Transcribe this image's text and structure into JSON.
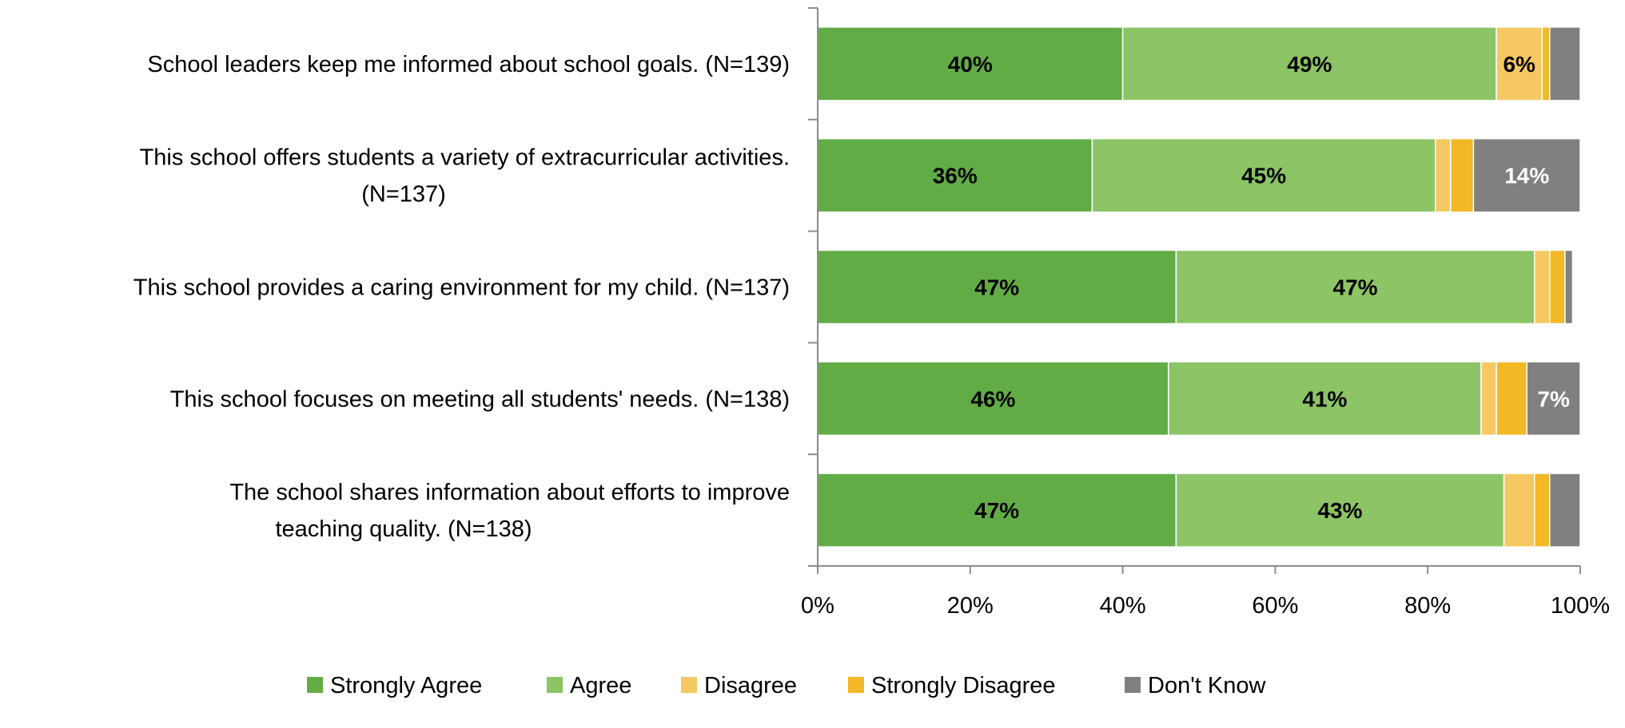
{
  "chart_data": {
    "type": "bar",
    "orientation": "horizontal",
    "stacked": true,
    "categories": [
      [
        "School leaders keep me informed about school goals. (N=139)"
      ],
      [
        "This school offers students a variety of extracurricular activities.",
        "(N=137)"
      ],
      [
        "This school provides a caring environment for my child. (N=137)"
      ],
      [
        "This school focuses on meeting all students' needs. (N=138)"
      ],
      [
        "The school shares information about efforts to improve",
        "teaching quality. (N=138)"
      ]
    ],
    "series": [
      {
        "name": "Strongly Agree",
        "color": "#62ac46",
        "values": [
          40,
          36,
          47,
          46,
          47
        ],
        "labels": [
          "40%",
          "36%",
          "47%",
          "46%",
          "47%"
        ],
        "label_color": "#000000"
      },
      {
        "name": "Agree",
        "color": "#8cc466",
        "values": [
          49,
          45,
          47,
          41,
          43
        ],
        "labels": [
          "49%",
          "45%",
          "47%",
          "41%",
          "43%"
        ],
        "label_color": "#000000"
      },
      {
        "name": "Disagree",
        "color": "#f6c863",
        "values": [
          6,
          2,
          2,
          2,
          4
        ],
        "labels": [
          "6%",
          "",
          "",
          "",
          ""
        ],
        "label_color": "#000000"
      },
      {
        "name": "Strongly Disagree",
        "color": "#f2b826",
        "values": [
          1,
          3,
          2,
          4,
          2
        ],
        "labels": [
          "",
          "",
          "",
          "",
          ""
        ],
        "label_color": "#000000"
      },
      {
        "name": "Don't Know",
        "color": "#808080",
        "values": [
          4,
          14,
          1,
          7,
          4
        ],
        "labels": [
          "",
          "14%",
          "",
          "7%",
          ""
        ],
        "label_color": "#ffffff"
      }
    ],
    "xlim": [
      0,
      100
    ],
    "xticks": [
      {
        "value": 0,
        "label": "0%"
      },
      {
        "value": 20,
        "label": "20%"
      },
      {
        "value": 40,
        "label": "40%"
      },
      {
        "value": 60,
        "label": "60%"
      },
      {
        "value": 80,
        "label": "80%"
      },
      {
        "value": 100,
        "label": "100%"
      }
    ],
    "grid": false,
    "legend_position": "bottom"
  }
}
